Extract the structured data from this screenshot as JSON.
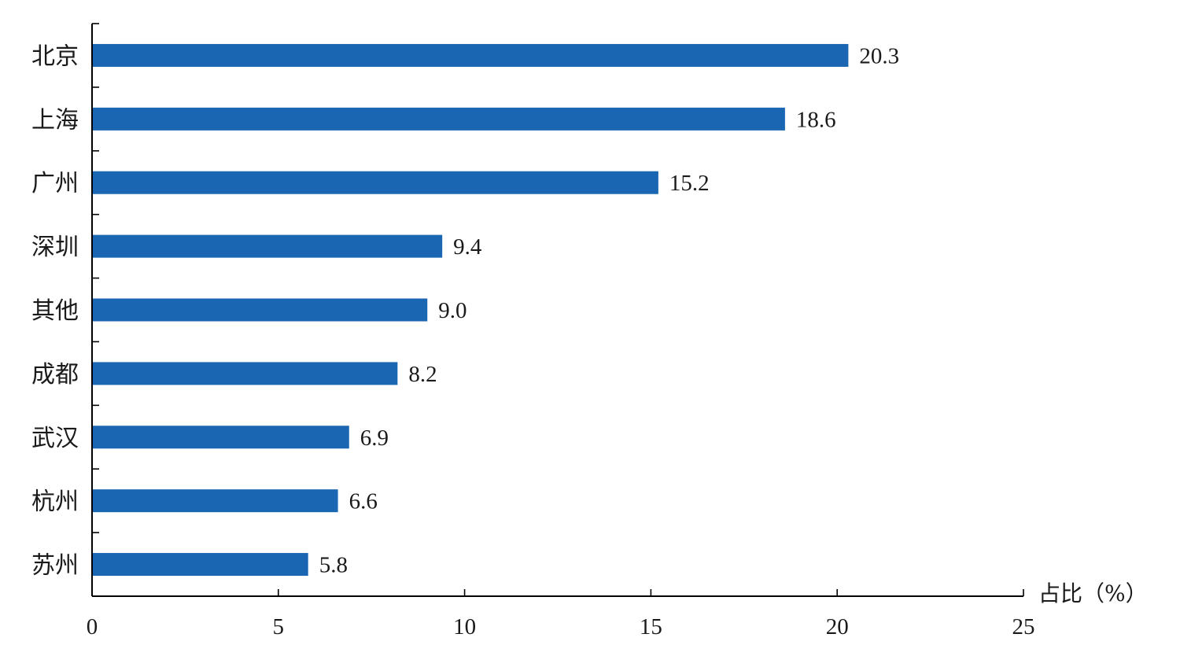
{
  "chart_data": {
    "type": "bar",
    "orientation": "horizontal",
    "categories": [
      "北京",
      "上海",
      "广州",
      "深圳",
      "其他",
      "成都",
      "武汉",
      "杭州",
      "苏州"
    ],
    "values": [
      20.3,
      18.6,
      15.2,
      9.4,
      9.0,
      8.2,
      6.9,
      6.6,
      5.8
    ],
    "value_labels": [
      "20.3",
      "18.6",
      "15.2",
      "9.4",
      "9.0",
      "8.2",
      "6.9",
      "6.6",
      "5.8"
    ],
    "xlabel": "占比（%）",
    "xlim": [
      0,
      25
    ],
    "xticks": [
      "0",
      "5",
      "10",
      "15",
      "20",
      "25"
    ],
    "bar_color": "#1a66b3",
    "grid": false,
    "legend": "none"
  }
}
